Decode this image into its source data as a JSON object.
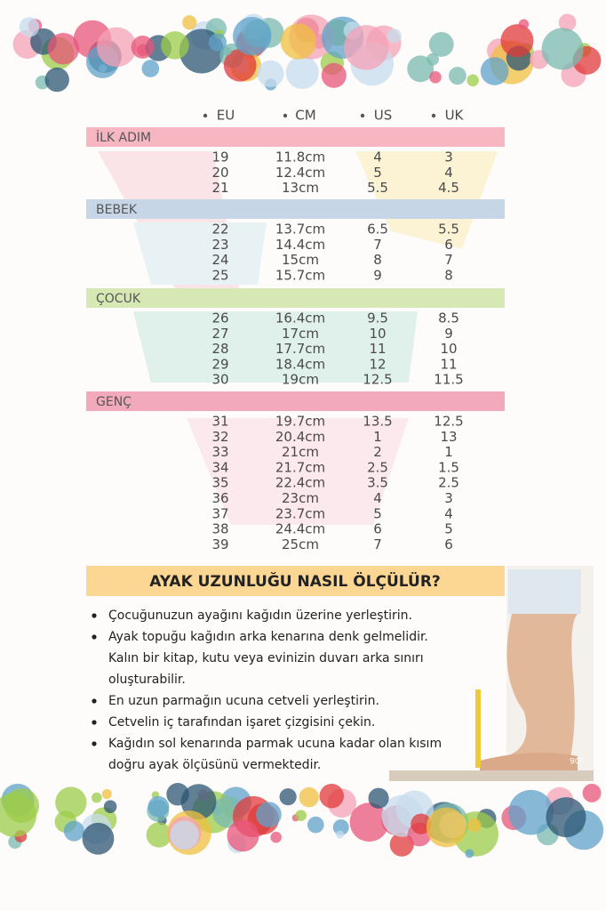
{
  "table": {
    "headers": [
      "EU",
      "CM",
      "US",
      "UK"
    ],
    "sections": [
      {
        "title": "İLK ADIM",
        "rows": [
          [
            "19",
            "11.8cm",
            "4",
            "3"
          ],
          [
            "20",
            "12.4cm",
            "5",
            "4"
          ],
          [
            "21",
            "13cm",
            "5.5",
            "4.5"
          ]
        ]
      },
      {
        "title": "BEBEK",
        "rows": [
          [
            "22",
            "13.7cm",
            "6.5",
            "5.5"
          ],
          [
            "23",
            "14.4cm",
            "7",
            "6"
          ],
          [
            "24",
            "15cm",
            "8",
            "7"
          ],
          [
            "25",
            "15.7cm",
            "9",
            "8"
          ]
        ]
      },
      {
        "title": "ÇOCUK",
        "rows": [
          [
            "26",
            "16.4cm",
            "9.5",
            "8.5"
          ],
          [
            "27",
            "17cm",
            "10",
            "9"
          ],
          [
            "28",
            "17.7cm",
            "11",
            "10"
          ],
          [
            "29",
            "18.4cm",
            "12",
            "11"
          ],
          [
            "30",
            "19cm",
            "12.5",
            "11.5"
          ]
        ]
      },
      {
        "title": "GENÇ",
        "rows": [
          [
            "31",
            "19.7cm",
            "13.5",
            "12.5"
          ],
          [
            "32",
            "20.4cm",
            "1",
            "13"
          ],
          [
            "33",
            "21cm",
            "2",
            "1"
          ],
          [
            "34",
            "21.7cm",
            "2.5",
            "1.5"
          ],
          [
            "35",
            "22.4cm",
            "3.5",
            "2.5"
          ],
          [
            "36",
            "23cm",
            "4",
            "3"
          ],
          [
            "37",
            "23.7cm",
            "5",
            "4"
          ],
          [
            "38",
            "24.4cm",
            "6",
            "5"
          ],
          [
            "39",
            "25cm",
            "7",
            "6"
          ]
        ]
      }
    ]
  },
  "guide": {
    "title": "AYAK UZUNLUĞU NASIL ÖLÇÜLÜR?",
    "items": [
      [
        "Çocuğunuzun ayağını kağıdın üzerine yerleştirin."
      ],
      [
        "Ayak topuğu kağıdın arka kenarına denk gelmelidir.",
        "Kalın bir kitap, kutu veya evinizin duvarı arka sınırı",
        "oluşturabilir."
      ],
      [
        "En uzun parmağın ucuna cetveli yerleştirin."
      ],
      [
        "Cetvelin iç tarafından işaret çizgisini çekin."
      ],
      [
        "Kağıdın sol kenarında parmak ucuna kadar olan kısım",
        "doğru ayak ölçüsünü vermektedir."
      ]
    ],
    "photo_label": "90°"
  }
}
